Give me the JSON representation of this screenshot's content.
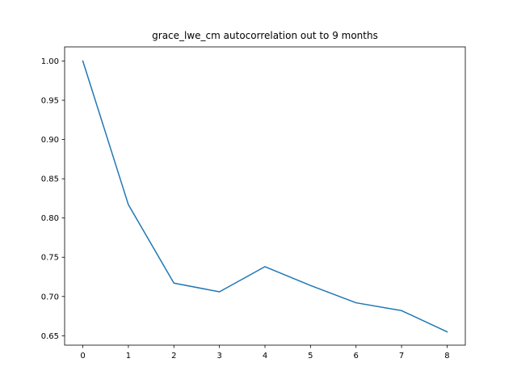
{
  "chart_data": {
    "type": "line",
    "title": "grace_lwe_cm autocorrelation out to 9 months",
    "xlabel": "",
    "ylabel": "",
    "x": [
      0,
      1,
      2,
      3,
      4,
      5,
      6,
      7,
      8
    ],
    "series": [
      {
        "values": [
          1.0,
          0.817,
          0.717,
          0.706,
          0.738,
          0.714,
          0.692,
          0.682,
          0.655
        ]
      }
    ],
    "xlim": [
      -0.4,
      8.4
    ],
    "ylim": [
      0.638,
      1.018
    ],
    "xticks": [
      0,
      1,
      2,
      3,
      4,
      5,
      6,
      7,
      8
    ],
    "yticks": [
      0.65,
      0.7,
      0.75,
      0.8,
      0.85,
      0.9,
      0.95,
      1.0
    ],
    "grid": false,
    "line_color": "#1f77b4"
  }
}
